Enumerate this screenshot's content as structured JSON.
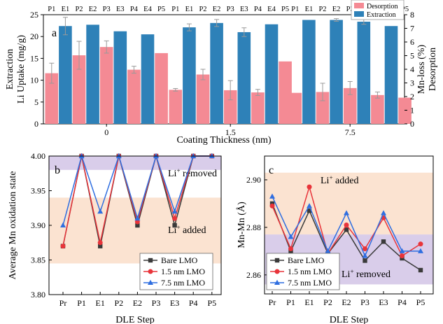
{
  "chart_data": [
    {
      "panel": "a",
      "type": "bar",
      "categories": [
        "0",
        "1.5",
        "7.5"
      ],
      "xlabel": "Coating Thickness (nm)",
      "ylabel_lines": [
        "Extraction",
        "Li Uptake (mg/g)"
      ],
      "y2label_lines": [
        "Mn-loss (%)",
        "Desorption"
      ],
      "ylim": [
        0,
        25
      ],
      "yticks": [
        0,
        5,
        10,
        15,
        20,
        25
      ],
      "y2lim": [
        0,
        8
      ],
      "y2ticks": [
        0,
        1,
        2,
        3,
        4,
        5,
        6,
        7,
        8
      ],
      "step_labels": [
        "P1",
        "E1",
        "P2",
        "E2",
        "P3",
        "E3",
        "P4",
        "E4",
        "P5"
      ],
      "legend": [
        {
          "name": "Desorption",
          "color": "#f48a94"
        },
        {
          "name": "Extraction",
          "color": "#2e81b8"
        }
      ],
      "groups": [
        {
          "category": "0",
          "values": [
            11.6,
            22.4,
            15.7,
            22.7,
            17.6,
            21.2,
            12.4,
            20.5,
            16.2
          ],
          "errors": [
            2.3,
            2.0,
            3.2,
            0,
            1.4,
            0,
            0.8,
            0,
            0
          ]
        },
        {
          "category": "1.5",
          "values": [
            7.8,
            22.1,
            11.3,
            23.1,
            7.7,
            21.0,
            7.2,
            22.8,
            14.3
          ],
          "errors": [
            0.3,
            0.8,
            1.2,
            0.8,
            2.2,
            1.0,
            0.7,
            0,
            0
          ]
        },
        {
          "category": "7.5",
          "values": [
            7.1,
            23.8,
            7.3,
            23.8,
            8.2,
            23.4,
            6.6,
            22.4,
            6.0
          ],
          "errors": [
            0,
            0,
            2.0,
            0.3,
            1.5,
            0.6,
            0.7,
            0,
            0
          ]
        }
      ]
    },
    {
      "panel": "b",
      "type": "line",
      "x": [
        "Pr",
        "P1",
        "E1",
        "P2",
        "E2",
        "P3",
        "E3",
        "P4",
        "P5"
      ],
      "xlabel": "DLE Step",
      "ylabel": "Average Mn oxidation state",
      "ylim": [
        3.8,
        4.0
      ],
      "yticks": [
        "3.80",
        "3.85",
        "3.90",
        "3.95",
        "4.00"
      ],
      "shaded_regions": [
        {
          "label_base": "Li",
          "label_sup": "+",
          "label_rest": " removed",
          "from": 3.98,
          "to": 4.02,
          "color": "#d9cdea"
        },
        {
          "label_base": "Li",
          "label_sup": "+",
          "label_rest": " added",
          "from": 3.845,
          "to": 3.94,
          "color": "#fbe3d1"
        }
      ],
      "series": [
        {
          "name": "Bare LMO",
          "color": "#3a3a3a",
          "marker": "square",
          "values": [
            3.87,
            4.0,
            3.87,
            4.0,
            3.9,
            4.0,
            3.9,
            4.0,
            4.0
          ]
        },
        {
          "name": "1.5 nm LMO",
          "color": "#e8343a",
          "marker": "circle",
          "values": [
            3.87,
            4.0,
            3.875,
            4.0,
            3.905,
            4.0,
            3.91,
            4.0,
            4.0
          ]
        },
        {
          "name": "7.5 nm LMO",
          "color": "#2f6ee0",
          "marker": "triangle",
          "values": [
            3.9,
            4.0,
            3.92,
            4.0,
            3.91,
            4.0,
            3.92,
            4.0,
            4.0
          ]
        }
      ]
    },
    {
      "panel": "c",
      "type": "line",
      "x": [
        "Pr",
        "P1",
        "E1",
        "P2",
        "E2",
        "P3",
        "E3",
        "P4",
        "P5"
      ],
      "xlabel": "DLE Step",
      "ylabel": "Mn-Mn (Å)",
      "ylim": [
        2.852,
        2.91
      ],
      "yticks": [
        "2.86",
        "2.88",
        "2.90"
      ],
      "shaded_regions": [
        {
          "label_base": "Li",
          "label_sup": "+",
          "label_rest": " added",
          "from": 2.877,
          "to": 2.903,
          "color": "#fbe3d1"
        },
        {
          "label_base": "Li",
          "label_sup": "+",
          "label_rest": " removed",
          "from": 2.856,
          "to": 2.877,
          "color": "#d9cdea"
        }
      ],
      "series": [
        {
          "name": "Bare LMO",
          "color": "#3a3a3a",
          "marker": "square",
          "values": [
            2.89,
            2.87,
            2.887,
            2.869,
            2.879,
            2.866,
            2.874,
            2.867,
            2.862
          ]
        },
        {
          "name": "1.5 nm LMO",
          "color": "#e8343a",
          "marker": "circle",
          "values": [
            2.889,
            2.871,
            2.897,
            2.869,
            2.881,
            2.871,
            2.884,
            2.868,
            2.873
          ]
        },
        {
          "name": "7.5 nm LMO",
          "color": "#2f6ee0",
          "marker": "triangle",
          "values": [
            2.893,
            2.876,
            2.889,
            2.87,
            2.886,
            2.868,
            2.886,
            2.87,
            2.87
          ]
        }
      ]
    }
  ]
}
